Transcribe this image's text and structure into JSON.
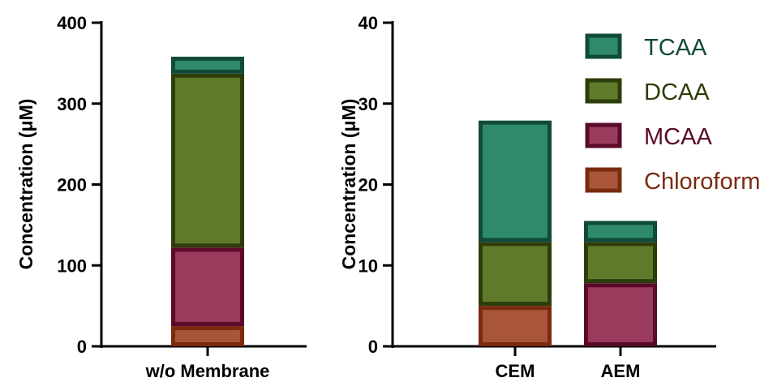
{
  "chart_data": [
    {
      "type": "bar",
      "stacked": true,
      "categories": [
        "w/o Membrane"
      ],
      "ylabel": "Concentration (μM)",
      "xlabel": "",
      "ylim": [
        0,
        400
      ],
      "yticks": [
        0,
        100,
        200,
        300,
        400
      ],
      "series": [
        {
          "name": "Chloroform",
          "values": [
            25
          ],
          "fill": "#a8553a",
          "stroke": "#7a2a0f"
        },
        {
          "name": "MCAA",
          "values": [
            97
          ],
          "fill": "#9a3a5c",
          "stroke": "#5a0a2a"
        },
        {
          "name": "DCAA",
          "values": [
            215
          ],
          "fill": "#5f7a2a",
          "stroke": "#2d3d0a"
        },
        {
          "name": "TCAA",
          "values": [
            21
          ],
          "fill": "#2e8a6a",
          "stroke": "#0f4a3a"
        }
      ],
      "grid": false,
      "legend": "none"
    },
    {
      "type": "bar",
      "stacked": true,
      "categories": [
        "CEM",
        "AEM"
      ],
      "ylabel": "Concentration (μM)",
      "xlabel": "",
      "ylim": [
        0,
        40
      ],
      "yticks": [
        0,
        10,
        20,
        30,
        40
      ],
      "series": [
        {
          "name": "Chloroform",
          "values": [
            5,
            0
          ],
          "fill": "#a8553a",
          "stroke": "#7a2a0f"
        },
        {
          "name": "MCAA",
          "values": [
            0,
            7.8
          ],
          "fill": "#9a3a5c",
          "stroke": "#5a0a2a"
        },
        {
          "name": "DCAA",
          "values": [
            7.9,
            5.1
          ],
          "fill": "#5f7a2a",
          "stroke": "#2d3d0a"
        },
        {
          "name": "TCAA",
          "values": [
            15,
            2.6
          ],
          "fill": "#2e8a6a",
          "stroke": "#0f4a3a"
        }
      ],
      "grid": false,
      "legend": "top-right"
    }
  ],
  "legend": {
    "items": [
      {
        "label": "TCAA",
        "fill": "#2e8a6a",
        "stroke": "#0f4a3a",
        "text_color": "#0f4a3a"
      },
      {
        "label": "DCAA",
        "fill": "#5f7a2a",
        "stroke": "#2d3d0a",
        "text_color": "#2d3d0a"
      },
      {
        "label": "MCAA",
        "fill": "#9a3a5c",
        "stroke": "#5a0a2a",
        "text_color": "#5a0a2a"
      },
      {
        "label": "Chloroform",
        "fill": "#a8553a",
        "stroke": "#7a2a0f",
        "text_color": "#7a2a0f"
      }
    ]
  }
}
